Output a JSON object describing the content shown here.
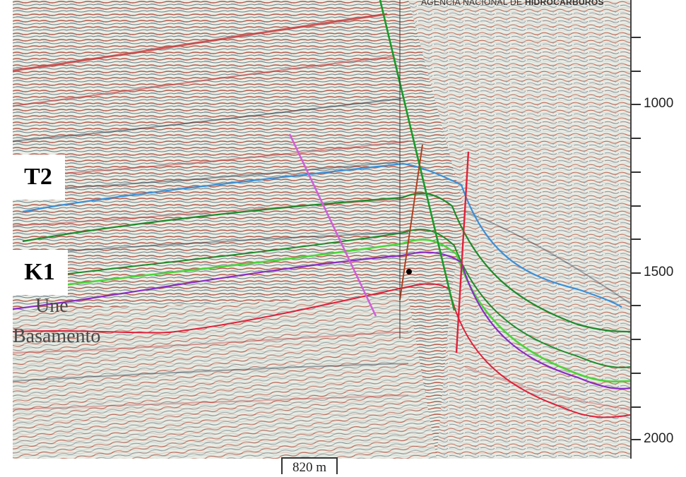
{
  "horizons": {
    "t2": "T2",
    "k1": "K1",
    "une": "Une",
    "basamento": "Basamento"
  },
  "axis": {
    "ticks": [
      "1000",
      "1500",
      "2000"
    ]
  },
  "scale": {
    "label": "820 m"
  },
  "credit": {
    "prefix": "AGENCIA NACIONAL DE",
    "bold": "HIDROCARBUROS"
  },
  "colors": {
    "horizon_blue": "#3a8fd8",
    "horizon_dark_green": "#1f8a2a",
    "horizon_light_green": "#4cd43a",
    "horizon_purple": "#8a2cc4",
    "horizon_red": "#e0203a",
    "fault_green": "#1a9a2a",
    "fault_magenta": "#d060d8",
    "fault_red": "#e0203a",
    "fault_brown": "#b04020"
  }
}
